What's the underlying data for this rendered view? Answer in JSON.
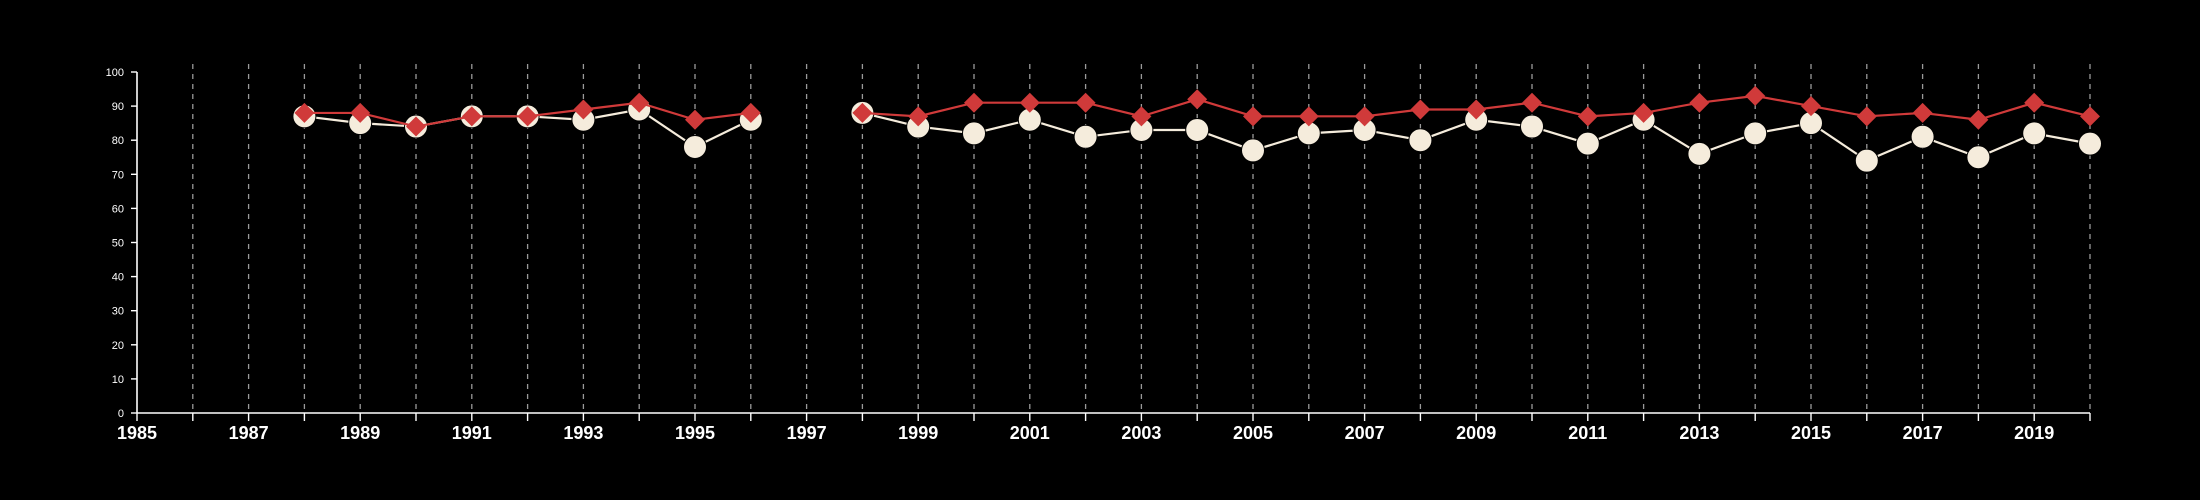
{
  "chart_data": {
    "type": "line",
    "title": "",
    "xlabel": "",
    "ylabel": "",
    "xlim": [
      1985,
      2020
    ],
    "ylim": [
      0,
      100
    ],
    "x_ticks": [
      1985,
      1987,
      1989,
      1991,
      1993,
      1995,
      1997,
      1999,
      2001,
      2003,
      2005,
      2007,
      2009,
      2011,
      2013,
      2015,
      2017,
      2019
    ],
    "y_ticks": [
      0,
      10,
      20,
      30,
      40,
      50,
      60,
      70,
      80,
      90,
      100
    ],
    "grid": "vertical dashed at every year",
    "legend": "none",
    "x": [
      1988,
      1989,
      1990,
      1991,
      1992,
      1993,
      1994,
      1995,
      1996,
      1997,
      1998,
      1999,
      2000,
      2001,
      2002,
      2003,
      2004,
      2005,
      2006,
      2007,
      2008,
      2009,
      2010,
      2011,
      2012,
      2013,
      2014,
      2015,
      2016,
      2017,
      2018,
      2019,
      2020
    ],
    "series": [
      {
        "color": "#f5ecdc",
        "marker": "circle",
        "values": [
          87,
          85,
          84,
          87,
          87,
          86,
          89,
          78,
          86,
          null,
          88,
          84,
          82,
          86,
          81,
          83,
          83,
          77,
          82,
          83,
          80,
          86,
          84,
          79,
          86,
          76,
          82,
          85,
          74,
          81,
          75,
          82,
          79
        ]
      },
      {
        "color": "#d03a3a",
        "marker": "diamond",
        "values": [
          88,
          88,
          84,
          87,
          87,
          89,
          91,
          86,
          88,
          null,
          88,
          87,
          91,
          91,
          91,
          87,
          92,
          87,
          87,
          87,
          89,
          89,
          91,
          87,
          88,
          91,
          93,
          90,
          87,
          88,
          86,
          91,
          87
        ]
      }
    ]
  }
}
